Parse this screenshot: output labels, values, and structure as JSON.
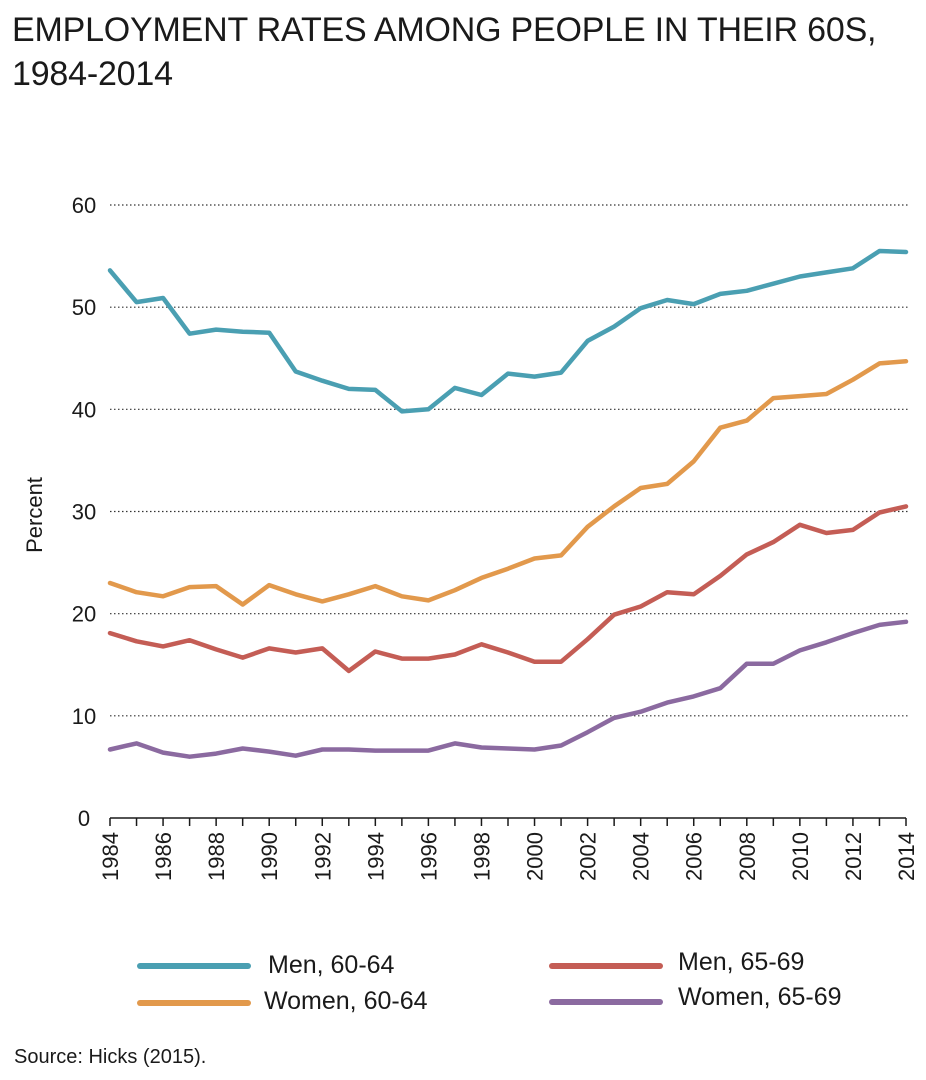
{
  "chart_data": {
    "type": "line",
    "title": "EMPLOYMENT RATES AMONG PEOPLE IN THEIR 60S, 1984-2014",
    "xlabel": "",
    "ylabel": "Percent",
    "ylim": [
      0,
      60
    ],
    "yticks": [
      "0",
      "10",
      "20",
      "30",
      "40",
      "50",
      "60"
    ],
    "xticks": [
      "1984",
      "1986",
      "1988",
      "1990",
      "1992",
      "1994",
      "1996",
      "1998",
      "2000",
      "2002",
      "2004",
      "2006",
      "2008",
      "2010",
      "2012",
      "2014"
    ],
    "grid": "horizontal dotted",
    "legend_position": "bottom",
    "x": [
      1984,
      1985,
      1986,
      1987,
      1988,
      1989,
      1990,
      1991,
      1992,
      1993,
      1994,
      1995,
      1996,
      1997,
      1998,
      1999,
      2000,
      2001,
      2002,
      2003,
      2004,
      2005,
      2006,
      2007,
      2008,
      2009,
      2010,
      2011,
      2012,
      2013,
      2014
    ],
    "series": [
      {
        "name": "Men, 60-64",
        "color": "#4a9fb2",
        "values": [
          53.6,
          50.5,
          50.9,
          47.4,
          47.8,
          47.6,
          47.5,
          43.7,
          42.8,
          42.0,
          41.9,
          39.8,
          40.0,
          42.1,
          41.4,
          43.5,
          43.2,
          43.6,
          46.7,
          48.1,
          49.9,
          50.7,
          50.3,
          51.3,
          51.6,
          52.3,
          53.0,
          53.4,
          53.8,
          55.5,
          55.4
        ]
      },
      {
        "name": "Women, 60-64",
        "color": "#e2994c",
        "values": [
          23.0,
          22.1,
          21.7,
          22.6,
          22.7,
          20.9,
          22.8,
          21.9,
          21.2,
          21.9,
          22.7,
          21.7,
          21.3,
          22.3,
          23.5,
          24.4,
          25.4,
          25.7,
          28.5,
          30.5,
          32.3,
          32.7,
          34.9,
          38.2,
          38.9,
          41.1,
          41.3,
          41.5,
          42.9,
          44.5,
          44.7
        ]
      },
      {
        "name": "Men, 65-69",
        "color": "#c45d55",
        "values": [
          18.1,
          17.3,
          16.8,
          17.4,
          16.5,
          15.7,
          16.6,
          16.2,
          16.6,
          14.4,
          16.3,
          15.6,
          15.6,
          16.0,
          17.0,
          16.2,
          15.3,
          15.3,
          17.5,
          19.9,
          20.7,
          22.1,
          21.9,
          23.7,
          25.8,
          27.0,
          28.7,
          27.9,
          28.2,
          29.9,
          30.5
        ]
      },
      {
        "name": "Women, 65-69",
        "color": "#8b6aa0",
        "values": [
          6.7,
          7.3,
          6.4,
          6.0,
          6.3,
          6.8,
          6.5,
          6.1,
          6.7,
          6.7,
          6.6,
          6.6,
          6.6,
          7.3,
          6.9,
          6.8,
          6.7,
          7.1,
          8.4,
          9.8,
          10.4,
          11.3,
          11.9,
          12.7,
          15.1,
          15.1,
          16.4,
          17.2,
          18.1,
          18.9,
          19.2
        ]
      }
    ]
  },
  "source": "Source: Hicks (2015)."
}
